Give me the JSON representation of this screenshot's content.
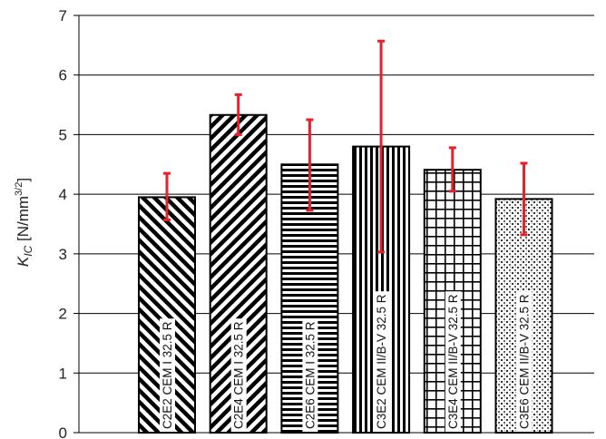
{
  "chart_data": {
    "type": "bar",
    "ylabel": {
      "main": "K",
      "sub": "IC",
      "unit_open": " [N/mm",
      "unit_sup": "3/2",
      "unit_close": "]"
    },
    "ylim": [
      0,
      7
    ],
    "yticks": [
      "0",
      "1",
      "2",
      "3",
      "4",
      "5",
      "6",
      "7"
    ],
    "grid": true,
    "legend": "none",
    "categories": [
      "C2E2 CEM I 32.5 R",
      "C2E4 CEM I 32.5 R",
      "C2E6 CEM I 32.5 R",
      "C3E2 CEM II/B-V 32.5 R",
      "C3E4 CEM II/B-V 32.5 R",
      "C3E6 CEM II/B-V 32.5 R"
    ],
    "values": [
      3.95,
      5.33,
      4.5,
      4.8,
      4.41,
      3.92
    ],
    "error_low": [
      3.57,
      5.0,
      3.73,
      3.03,
      4.05,
      3.32
    ],
    "error_high": [
      4.35,
      5.67,
      5.25,
      6.57,
      4.78,
      4.52
    ],
    "patterns": [
      "diagonal-back",
      "diagonal-fwd",
      "horizontal",
      "vertical",
      "grid",
      "dots"
    ],
    "colors": {
      "error_bar": "#e8202a",
      "bar_stroke": "#000000",
      "grid": "#000000"
    }
  }
}
